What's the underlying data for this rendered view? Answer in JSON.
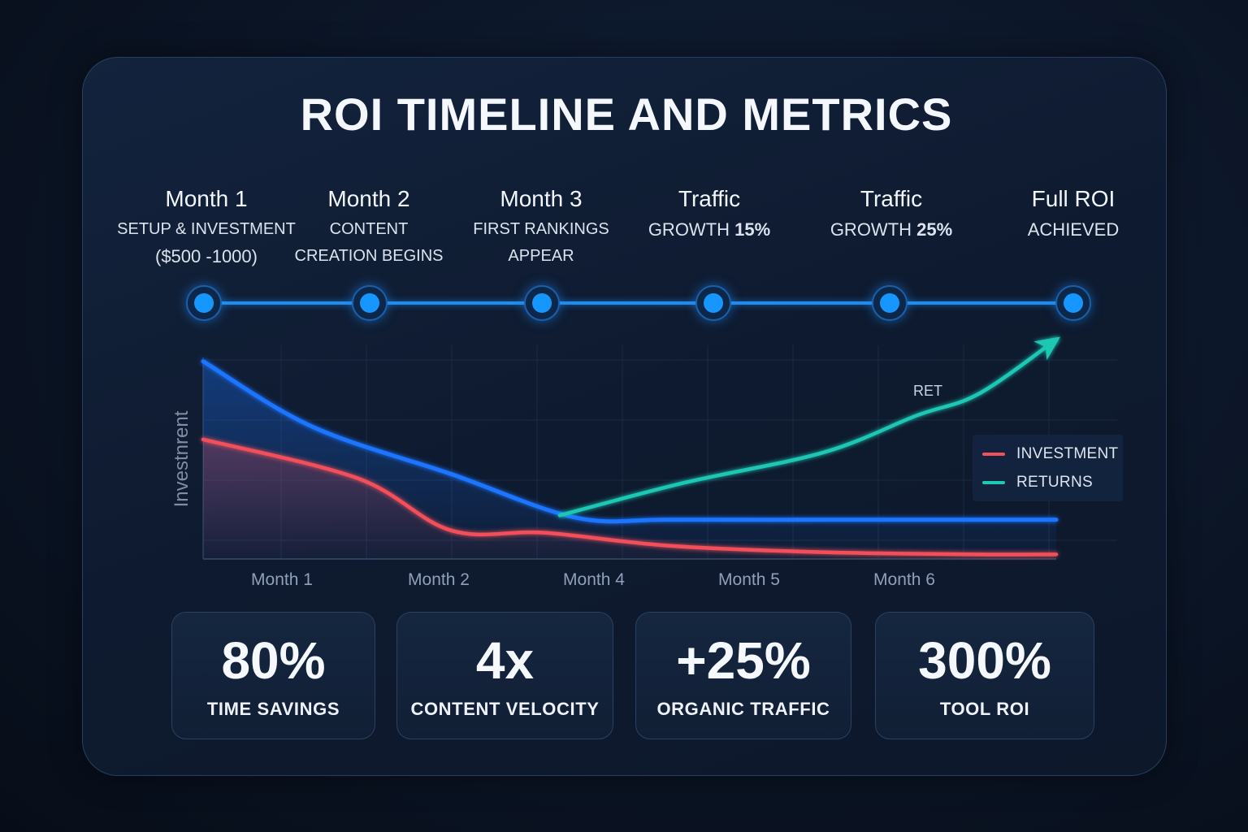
{
  "title": "ROI TIMELINE AND METRICS",
  "milestones": [
    {
      "title": "Month 1",
      "desc": [
        "SETUP & INVESTMENT",
        "($500 -1000)"
      ]
    },
    {
      "title": "Month 2",
      "desc": [
        "CONTENT",
        "CREATION BEGINS"
      ]
    },
    {
      "title": "Month 3",
      "desc": [
        "FIRST RANKINGS",
        "APPEAR"
      ]
    },
    {
      "title": "Traffic",
      "desc_prefix": "GROWTH ",
      "desc_bold": "15%"
    },
    {
      "title": "Traffic",
      "desc_prefix": "GROWTH ",
      "desc_bold": "25%"
    },
    {
      "title": "Full ROI",
      "desc": [
        "ACHIEVED"
      ]
    }
  ],
  "chart_data": {
    "type": "line",
    "ylabel": "Investnrent",
    "x_tick_labels": [
      "Month 1",
      "Month 2",
      "Month 4",
      "Month 5",
      "Month 6"
    ],
    "annotation": "RET",
    "legend": {
      "position": "right",
      "entries": [
        "INVESTMENT",
        "RETURNS"
      ]
    },
    "colors": {
      "investment": "#f2505a",
      "returns": "#1fc8b4",
      "cost_curve": "#1a74ff"
    },
    "xlim": [
      0.5,
      6.0
    ],
    "ylim": [
      0,
      100
    ],
    "series": [
      {
        "name": "INVESTMENT",
        "color": "#f2505a",
        "x": [
          0.5,
          1.5,
          2.1,
          2.7,
          3.5,
          4.5,
          5.5,
          6.0
        ],
        "y": [
          54,
          36,
          12,
          11,
          5,
          2,
          1,
          1
        ]
      },
      {
        "color": "#1a74ff",
        "x": [
          0.5,
          1.2,
          2.1,
          2.9,
          3.5,
          4.5,
          5.5,
          6.0
        ],
        "y": [
          90,
          60,
          38,
          18,
          17,
          17,
          17,
          17
        ]
      },
      {
        "name": "RETURNS",
        "color": "#1fc8b4",
        "x": [
          2.8,
          3.6,
          4.5,
          5.1,
          5.5,
          6.0
        ],
        "y": [
          19,
          34,
          48,
          65,
          75,
          100
        ]
      }
    ],
    "grid": true
  },
  "metrics": [
    {
      "value": "80%",
      "label": "TIME SAVINGS"
    },
    {
      "value": "4x",
      "label": "CONTENT VELOCITY"
    },
    {
      "value": "+25%",
      "label": "ORGANIC TRAFFIC"
    },
    {
      "value": "300%",
      "label": "TOOL ROI"
    }
  ]
}
